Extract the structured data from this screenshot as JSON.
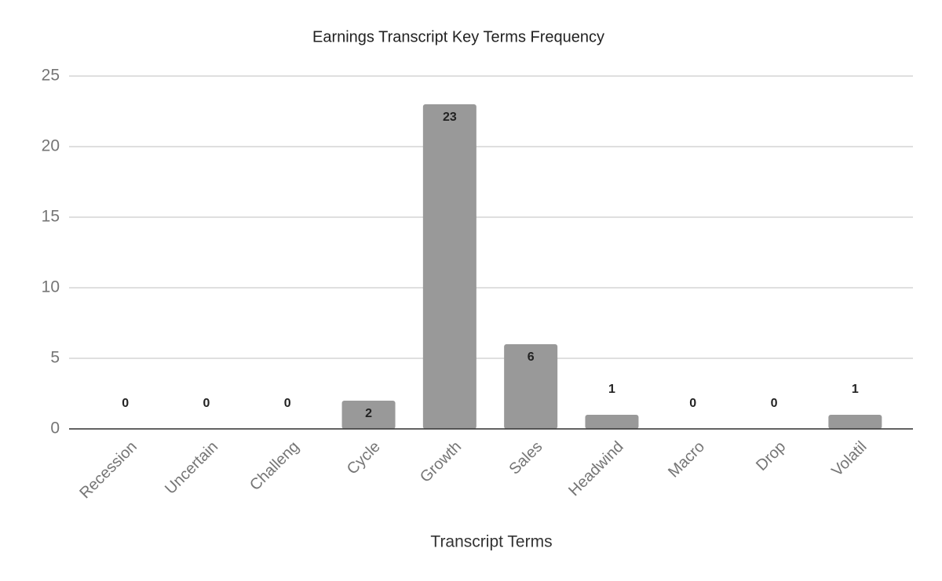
{
  "chart_data": {
    "type": "bar",
    "title": "Earnings Transcript Key Terms Frequency",
    "x_label": "Transcript Terms",
    "categories": [
      "Recession",
      "Uncertain",
      "Challeng",
      "Cycle",
      "Growth",
      "Sales",
      "Headwind",
      "Macro",
      "Drop",
      "Volatil"
    ],
    "values": [
      0,
      0,
      0,
      2,
      23,
      6,
      1,
      0,
      0,
      1
    ],
    "color": "#999999",
    "ylim": [
      0,
      25
    ],
    "yticks": [
      0,
      5,
      10,
      15,
      20,
      25
    ],
    "grid": true
  }
}
